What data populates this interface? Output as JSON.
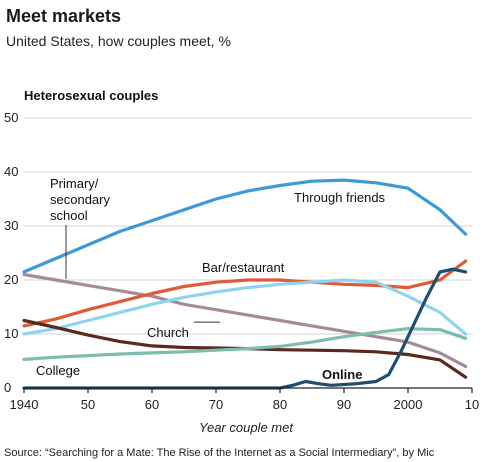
{
  "chart_data": {
    "type": "line",
    "title": "Meet markets",
    "subtitle": "United States, how couples meet, %",
    "panel_title": "Heterosexual couples",
    "xlabel": "Year couple met",
    "x_tick_labels": [
      "1940",
      "50",
      "60",
      "70",
      "80",
      "90",
      "2000",
      "10"
    ],
    "x_ticks": [
      1940,
      1950,
      1960,
      1970,
      1980,
      1990,
      2000,
      2010
    ],
    "xlim": [
      1940,
      2010
    ],
    "ylim": [
      0,
      50
    ],
    "y_ticks": [
      0,
      10,
      20,
      30,
      40,
      50
    ],
    "grid": true,
    "source": "Source: “Searching for a Mate: The Rise of the Internet as a Social Intermediary”, by Mic",
    "series": [
      {
        "name": "Through friends",
        "color": "#3d9ad8",
        "x": [
          1940,
          1945,
          1950,
          1955,
          1960,
          1965,
          1970,
          1975,
          1980,
          1985,
          1990,
          1995,
          2000,
          2005,
          2009
        ],
        "y": [
          21.5,
          24,
          26.5,
          29,
          31,
          33,
          35,
          36.5,
          37.5,
          38.3,
          38.5,
          38,
          37,
          33,
          28.5
        ]
      },
      {
        "name": "Primary/ secondary school",
        "color": "#a58b9a",
        "x": [
          1940,
          1945,
          1950,
          1955,
          1960,
          1965,
          1970,
          1975,
          1980,
          1985,
          1990,
          1995,
          2000,
          2005,
          2009
        ],
        "y": [
          21,
          20,
          19,
          18,
          17,
          15.5,
          14.5,
          13.5,
          12.5,
          11.5,
          10.5,
          9.5,
          8.5,
          6.5,
          4
        ]
      },
      {
        "name": "Bar/restaurant",
        "color": "#e05a35",
        "x": [
          1940,
          1945,
          1950,
          1955,
          1960,
          1965,
          1970,
          1975,
          1980,
          1985,
          1990,
          1995,
          2000,
          2005,
          2009
        ],
        "y": [
          11.5,
          12.8,
          14.5,
          16,
          17.5,
          18.8,
          19.6,
          20,
          20,
          19.6,
          19.2,
          19,
          18.6,
          20,
          23.5
        ]
      },
      {
        "name": "",
        "color": "#8fd3f0",
        "x": [
          1940,
          1945,
          1950,
          1955,
          1960,
          1965,
          1970,
          1975,
          1980,
          1985,
          1990,
          1995,
          2000,
          2005,
          2009
        ],
        "y": [
          10,
          11,
          12.5,
          14,
          15.5,
          16.8,
          17.8,
          18.6,
          19.2,
          19.6,
          20,
          19.6,
          17,
          14,
          10
        ]
      },
      {
        "name": "Church",
        "color": "#5a2a1e",
        "x": [
          1940,
          1945,
          1950,
          1955,
          1960,
          1965,
          1970,
          1975,
          1980,
          1985,
          1990,
          1995,
          2000,
          2005,
          2009
        ],
        "y": [
          12.5,
          11.2,
          9.8,
          8.6,
          7.8,
          7.5,
          7.4,
          7.3,
          7.1,
          7,
          6.9,
          6.7,
          6.2,
          5.2,
          2
        ]
      },
      {
        "name": "College",
        "color": "#7dbcb0",
        "x": [
          1940,
          1945,
          1950,
          1955,
          1960,
          1965,
          1970,
          1975,
          1980,
          1985,
          1990,
          1995,
          2000,
          2005,
          2009
        ],
        "y": [
          5.3,
          5.7,
          6,
          6.3,
          6.5,
          6.7,
          7,
          7.3,
          7.7,
          8.5,
          9.5,
          10.3,
          11,
          10.8,
          9.2
        ]
      },
      {
        "name": "Online",
        "color": "#1d4e6e",
        "x": [
          1940,
          1960,
          1980,
          1982,
          1984,
          1986,
          1988,
          1992,
          1995,
          1997,
          1999,
          2001,
          2003,
          2005,
          2007,
          2009
        ],
        "y": [
          0,
          0,
          0,
          0.5,
          1.2,
          0.8,
          0.5,
          0.8,
          1.2,
          2.5,
          7,
          12,
          17,
          21.5,
          22,
          21.5
        ]
      }
    ]
  }
}
